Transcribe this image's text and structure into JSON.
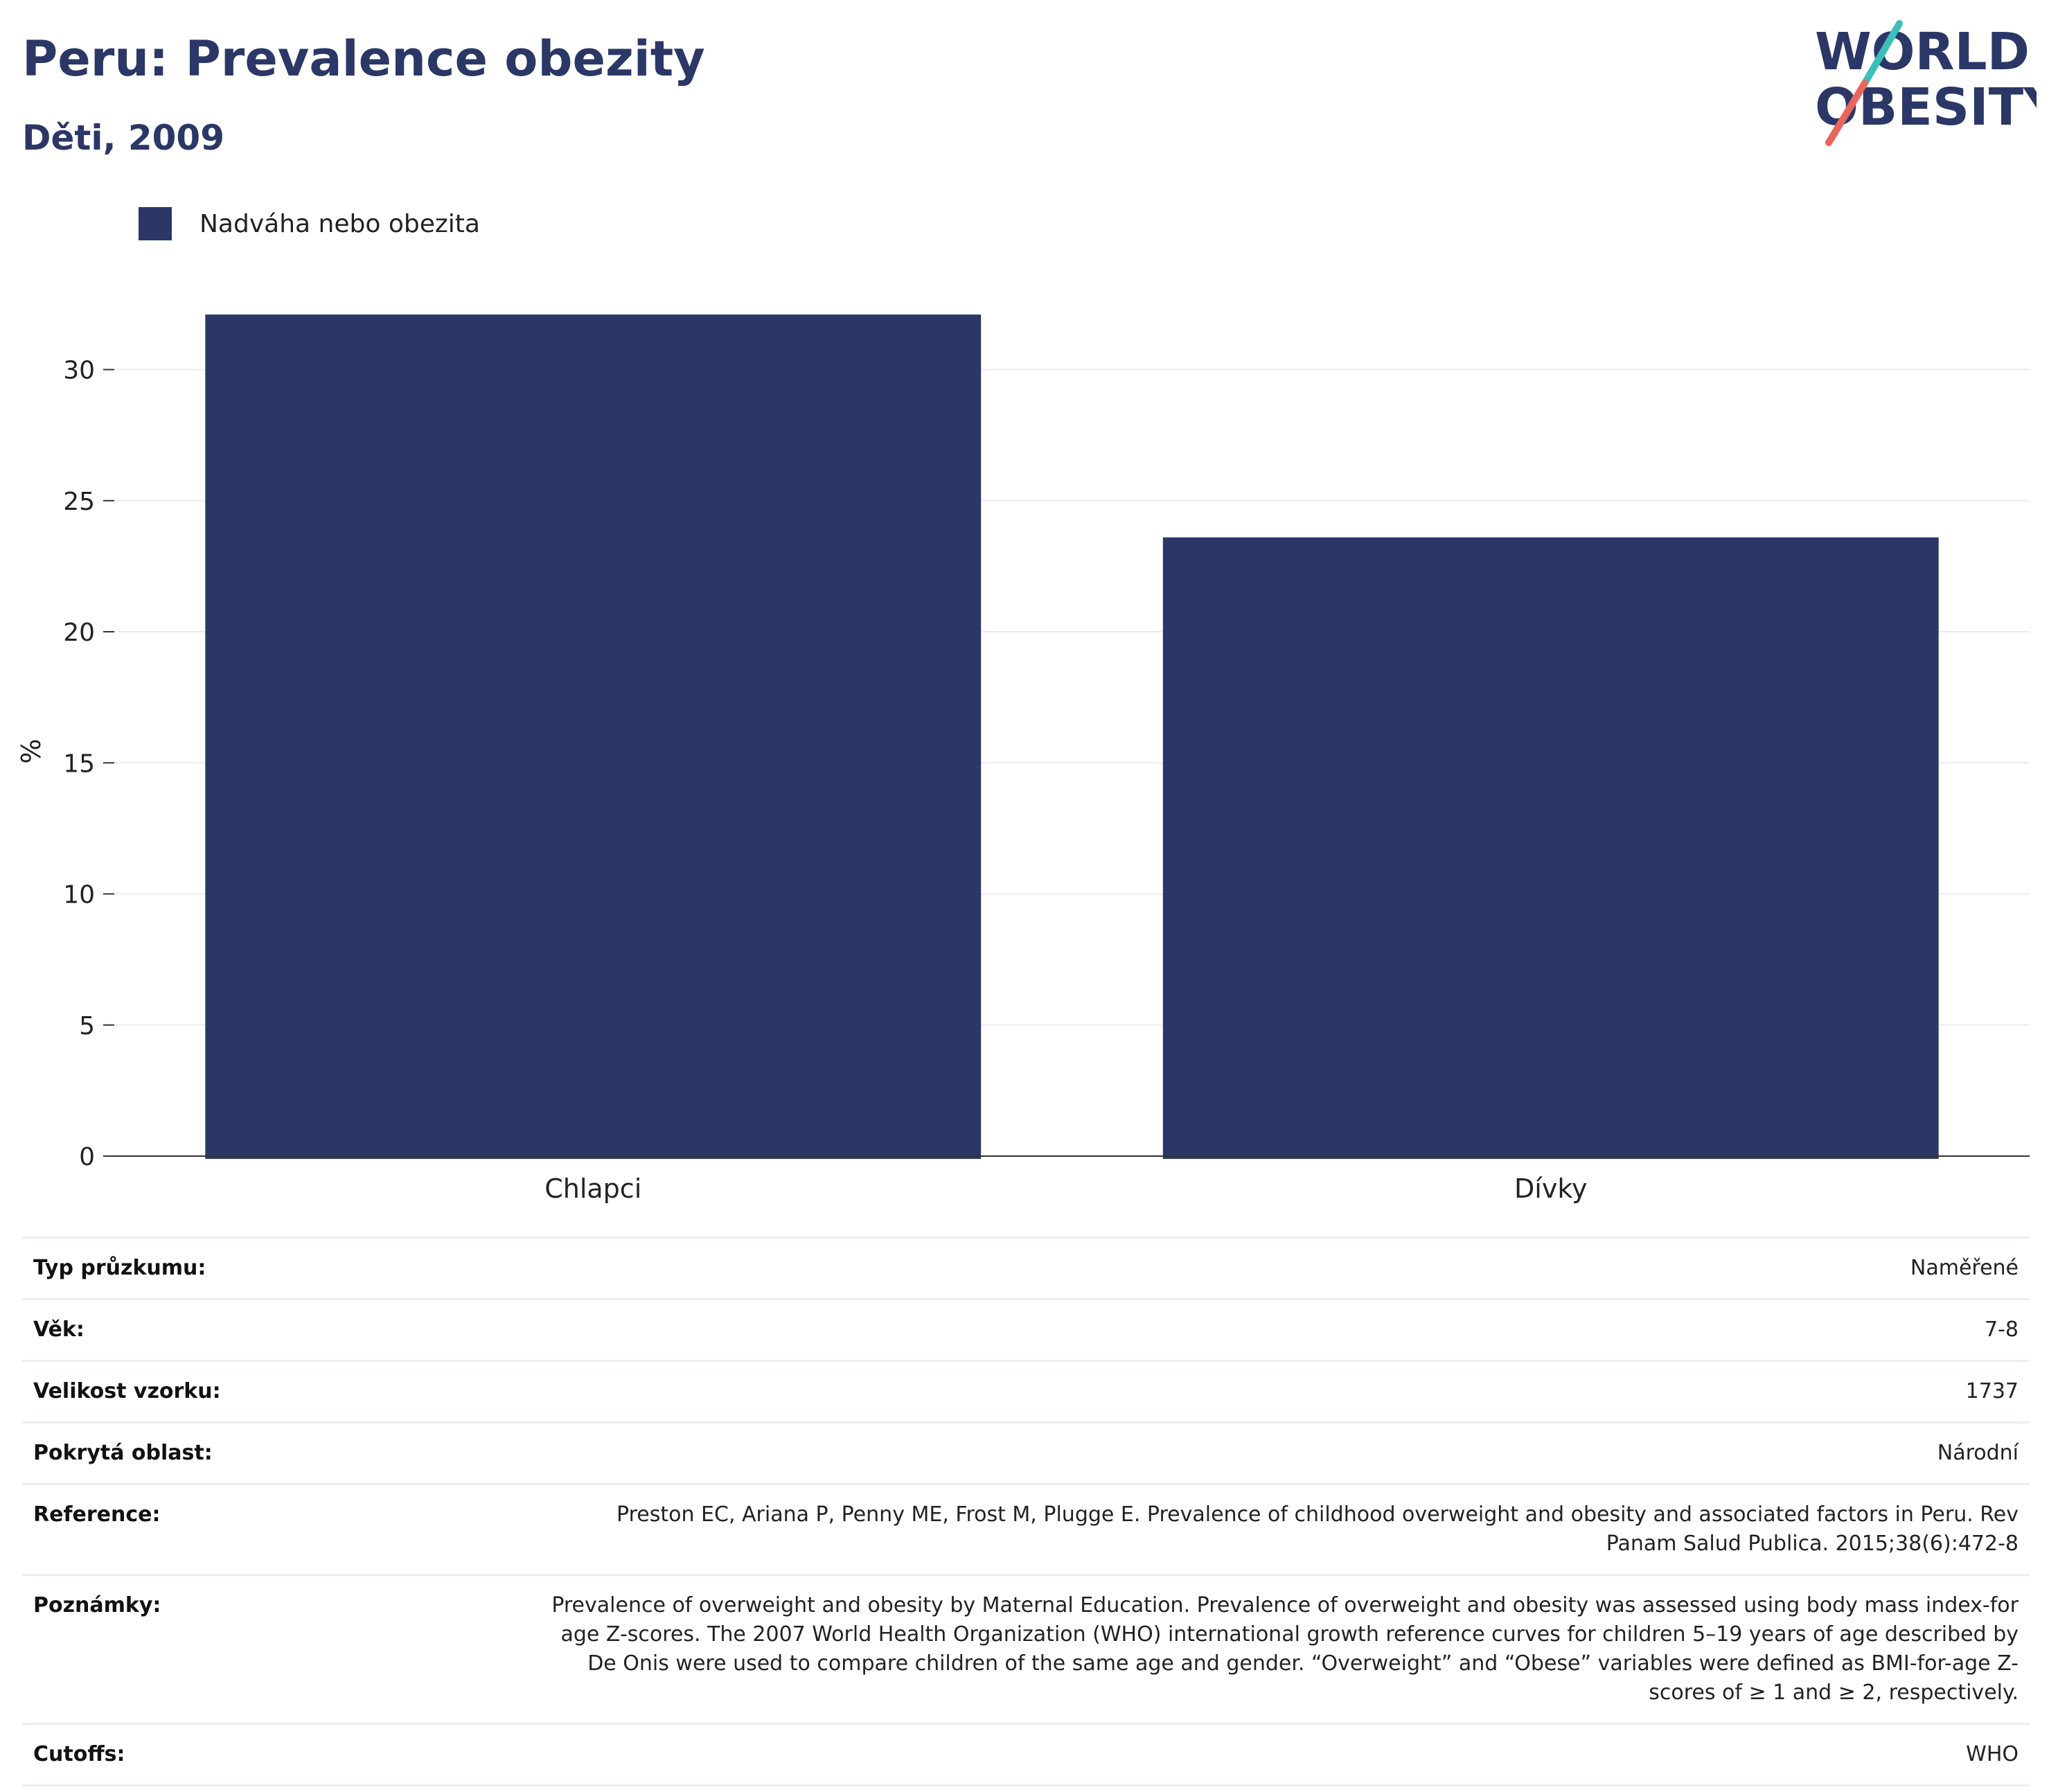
{
  "header": {
    "title": "Peru: Prevalence obezity",
    "subtitle": "Děti, 2009",
    "logo_line1": "WORLD",
    "logo_line2": "OBESITY"
  },
  "colors": {
    "bar": "#2b3766",
    "title": "#2b3766",
    "logo_teal": "#3bbfb8",
    "logo_red": "#e8665c",
    "grid": "#ebebf0"
  },
  "chart_data": {
    "type": "bar",
    "categories": [
      "Chlapci",
      "Dívky"
    ],
    "series": [
      {
        "name": "Nadváha nebo obezita",
        "values": [
          32.1,
          23.6
        ]
      }
    ],
    "ylabel": "%",
    "xlabel": "",
    "ylim": [
      0,
      33
    ],
    "yticks": [
      0,
      5,
      10,
      15,
      20,
      25,
      30
    ],
    "grid": true,
    "legend": "top-left"
  },
  "info": [
    {
      "label": "Typ průzkumu:",
      "value": "Naměřené"
    },
    {
      "label": "Věk:",
      "value": "7-8"
    },
    {
      "label": "Velikost vzorku:",
      "value": "1737"
    },
    {
      "label": "Pokrytá oblast:",
      "value": "Národní"
    },
    {
      "label": "Reference:",
      "value": "Preston EC, Ariana P, Penny ME, Frost M, Plugge E. Prevalence of childhood overweight and obesity and associated factors in Peru. Rev Panam Salud Publica. 2015;38(6):472-8"
    },
    {
      "label": "Poznámky:",
      "value": "Prevalence of overweight and obesity by Maternal Education. Prevalence of overweight and obesity was assessed using body mass index-for age Z-scores. The 2007 World Health Organization (WHO) international growth reference curves for children 5–19 years of age described by De Onis were used to compare children of the same age and gender. “Overweight” and “Obese” variables were defined as BMI-for-age Z-scores of ≥ 1 and ≥ 2, respectively."
    },
    {
      "label": "Cutoffs:",
      "value": "WHO"
    }
  ]
}
